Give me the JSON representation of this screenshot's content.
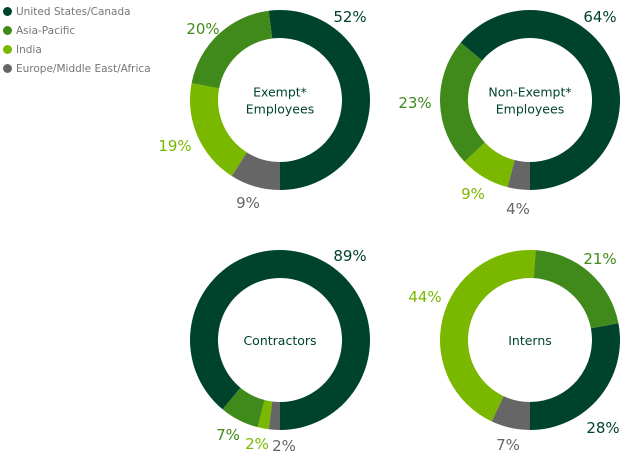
{
  "chart_data": [
    {
      "type": "pie",
      "donut": true,
      "title": "Exempt* Employees",
      "title_lines": [
        "Exempt*",
        "Employees"
      ],
      "categories": [
        "United States/Canada",
        "Asia-Pacific",
        "India",
        "Europe/Middle East/Africa"
      ],
      "values": [
        52,
        20,
        19,
        9
      ],
      "labels": [
        "52%",
        "20%",
        "19%",
        "9%"
      ]
    },
    {
      "type": "pie",
      "donut": true,
      "title": "Non-Exempt* Employees",
      "title_lines": [
        "Non-Exempt*",
        "Employees"
      ],
      "categories": [
        "United States/Canada",
        "Asia-Pacific",
        "India",
        "Europe/Middle East/Africa"
      ],
      "values": [
        64,
        23,
        9,
        4
      ],
      "labels": [
        "64%",
        "23%",
        "9%",
        "4%"
      ]
    },
    {
      "type": "pie",
      "donut": true,
      "title": "Contractors",
      "title_lines": [
        "Contractors"
      ],
      "categories": [
        "United States/Canada",
        "Asia-Pacific",
        "India",
        "Europe/Middle East/Africa"
      ],
      "values": [
        89,
        7,
        2,
        2
      ],
      "labels": [
        "89%",
        "7%",
        "2%",
        "2%"
      ]
    },
    {
      "type": "pie",
      "donut": true,
      "title": "Interns",
      "title_lines": [
        "Interns"
      ],
      "categories": [
        "United States/Canada",
        "Asia-Pacific",
        "India",
        "Europe/Middle East/Africa"
      ],
      "values": [
        28,
        21,
        44,
        7
      ],
      "labels": [
        "28%",
        "21%",
        "44%",
        "7%"
      ]
    }
  ],
  "legend": {
    "placement": "top-left",
    "items": [
      {
        "label": "United States/Canada",
        "color": "#00432d"
      },
      {
        "label": "Asia-Pacific",
        "color": "#3f8a1a"
      },
      {
        "label": "India",
        "color": "#7ab800"
      },
      {
        "label": "Europe/Middle East/Africa",
        "color": "#666666"
      }
    ]
  }
}
